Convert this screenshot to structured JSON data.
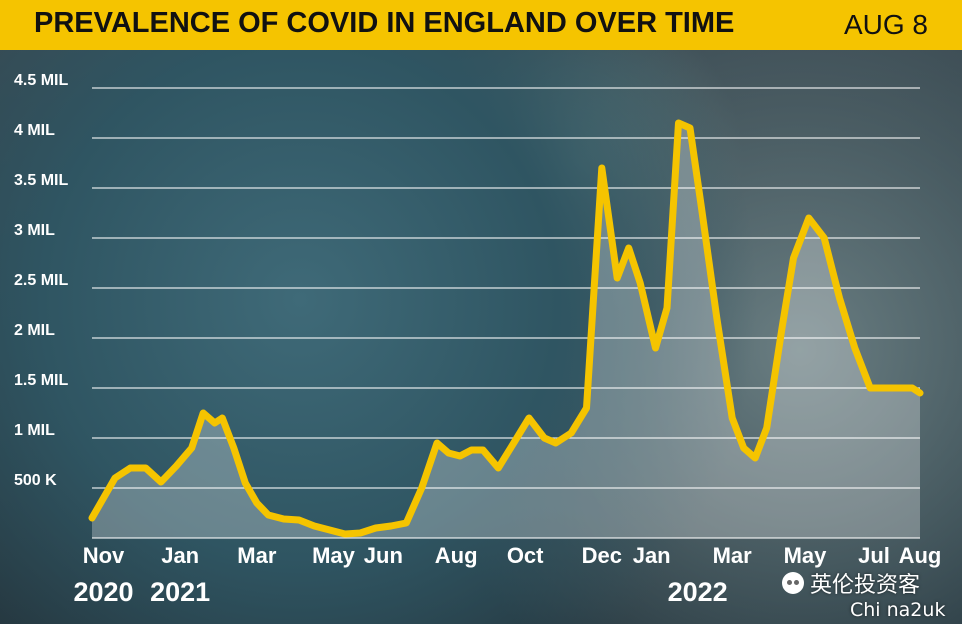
{
  "header": {
    "title": "PREVALENCE OF COVID IN ENGLAND OVER TIME",
    "date": "AUG 8",
    "background": "#f5c400"
  },
  "watermark": {
    "line1": "英伦投资客",
    "line2": "Chi na2uk",
    "icon": "wechat-icon"
  },
  "chart_data": {
    "type": "area",
    "title": "PREVALENCE OF COVID IN ENGLAND OVER TIME",
    "xlabel": "",
    "ylabel": "",
    "ylim": [
      0,
      4500000
    ],
    "y_ticks": [
      {
        "value": 500000,
        "label": "500 K"
      },
      {
        "value": 1000000,
        "label": "1 MIL"
      },
      {
        "value": 1500000,
        "label": "1.5 MIL"
      },
      {
        "value": 2000000,
        "label": "2 MIL"
      },
      {
        "value": 2500000,
        "label": "2.5 MIL"
      },
      {
        "value": 3000000,
        "label": "3 MIL"
      },
      {
        "value": 3500000,
        "label": "3.5 MIL"
      },
      {
        "value": 4000000,
        "label": "4 MIL"
      },
      {
        "value": 4500000,
        "label": "4.5 MIL"
      }
    ],
    "x_ticks": [
      {
        "t": 0.3,
        "label": "Nov"
      },
      {
        "t": 2.3,
        "label": "Jan"
      },
      {
        "t": 4.3,
        "label": "Mar"
      },
      {
        "t": 6.3,
        "label": "May"
      },
      {
        "t": 7.6,
        "label": "Jun"
      },
      {
        "t": 9.5,
        "label": "Aug"
      },
      {
        "t": 11.3,
        "label": "Oct"
      },
      {
        "t": 13.3,
        "label": "Dec"
      },
      {
        "t": 14.6,
        "label": "Jan"
      },
      {
        "t": 16.7,
        "label": "Mar"
      },
      {
        "t": 18.6,
        "label": "May"
      },
      {
        "t": 20.4,
        "label": "Jul"
      },
      {
        "t": 21.6,
        "label": "Aug"
      }
    ],
    "year_labels": [
      {
        "t": 0.3,
        "label": "2020"
      },
      {
        "t": 2.3,
        "label": "2021"
      },
      {
        "t": 15.8,
        "label": "2022"
      }
    ],
    "grid": true,
    "line_color": "#f5c400",
    "series": [
      {
        "name": "",
        "x": [
          0.0,
          0.6,
          1.0,
          1.4,
          1.8,
          2.2,
          2.6,
          2.9,
          3.2,
          3.4,
          3.7,
          4.0,
          4.3,
          4.6,
          5.0,
          5.4,
          5.8,
          6.2,
          6.6,
          7.0,
          7.4,
          7.8,
          8.2,
          8.6,
          9.0,
          9.3,
          9.6,
          9.9,
          10.2,
          10.6,
          11.0,
          11.4,
          11.8,
          12.1,
          12.5,
          12.9,
          13.3,
          13.7,
          14.0,
          14.3,
          14.7,
          15.0,
          15.3,
          15.6,
          15.9,
          16.3,
          16.7,
          17.0,
          17.3,
          17.6,
          18.0,
          18.3,
          18.7,
          19.1,
          19.5,
          19.9,
          20.3,
          20.7,
          21.1,
          21.4,
          21.6
        ],
        "values": [
          200000,
          600000,
          700000,
          700000,
          560000,
          720000,
          900000,
          1250000,
          1150000,
          1200000,
          900000,
          550000,
          350000,
          230000,
          190000,
          180000,
          120000,
          80000,
          40000,
          50000,
          100000,
          120000,
          150000,
          500000,
          950000,
          850000,
          820000,
          880000,
          880000,
          700000,
          950000,
          1200000,
          1000000,
          950000,
          1050000,
          1300000,
          3700000,
          2600000,
          2900000,
          2550000,
          1900000,
          2300000,
          4150000,
          4100000,
          3300000,
          2200000,
          1200000,
          900000,
          800000,
          1100000,
          2100000,
          2800000,
          3200000,
          3000000,
          2400000,
          1900000,
          1500000,
          1500000,
          1500000,
          1500000,
          1450000
        ]
      }
    ]
  }
}
